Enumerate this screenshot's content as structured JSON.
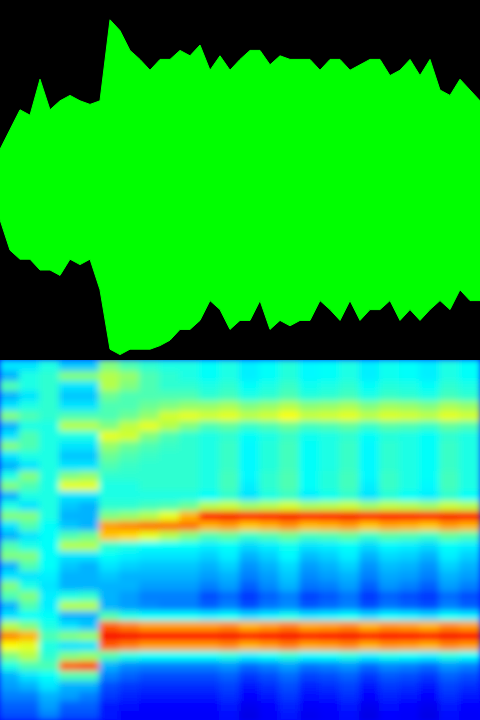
{
  "chart_data": [
    {
      "type": "area",
      "xlim": [
        0,
        480
      ],
      "ylim": [
        -1,
        1
      ],
      "tick_labels": false,
      "x": [
        0,
        10,
        20,
        30,
        40,
        50,
        60,
        70,
        80,
        90,
        100,
        110,
        120,
        130,
        140,
        150,
        160,
        170,
        180,
        190,
        200,
        210,
        220,
        230,
        240,
        250,
        260,
        270,
        280,
        290,
        300,
        310,
        320,
        330,
        340,
        350,
        360,
        370,
        380,
        390,
        400,
        410,
        420,
        430,
        440,
        450,
        460,
        470,
        480
      ],
      "series": [
        {
          "color": "#00ff00",
          "values": [
            0.17,
            0.28,
            0.39,
            0.36,
            0.56,
            0.39,
            0.44,
            0.47,
            0.44,
            0.42,
            0.44,
            0.89,
            0.83,
            0.72,
            0.67,
            0.61,
            0.67,
            0.67,
            0.72,
            0.69,
            0.75,
            0.61,
            0.69,
            0.61,
            0.67,
            0.72,
            0.72,
            0.64,
            0.69,
            0.67,
            0.67,
            0.67,
            0.61,
            0.67,
            0.67,
            0.61,
            0.64,
            0.67,
            0.67,
            0.58,
            0.61,
            0.67,
            0.58,
            0.67,
            0.5,
            0.47,
            0.56,
            0.5,
            0.44
          ]
        },
        {
          "color": "#00ff00",
          "values": [
            -0.22,
            -0.39,
            -0.44,
            -0.44,
            -0.5,
            -0.5,
            -0.53,
            -0.44,
            -0.47,
            -0.44,
            -0.61,
            -0.94,
            -0.97,
            -0.94,
            -0.94,
            -0.94,
            -0.92,
            -0.89,
            -0.83,
            -0.83,
            -0.78,
            -0.67,
            -0.72,
            -0.83,
            -0.78,
            -0.78,
            -0.67,
            -0.83,
            -0.78,
            -0.81,
            -0.78,
            -0.78,
            -0.67,
            -0.72,
            -0.78,
            -0.67,
            -0.78,
            -0.72,
            -0.72,
            -0.67,
            -0.78,
            -0.72,
            -0.78,
            -0.72,
            -0.67,
            -0.72,
            -0.61,
            -0.67,
            -0.67
          ]
        }
      ]
    },
    {
      "type": "heatmap",
      "xlim": [
        0,
        24
      ],
      "ylim": [
        0,
        36
      ],
      "zlim": [
        0,
        1
      ],
      "tick_labels": false,
      "cells": [
        [
          0.2,
          0.2,
          0.25,
          0.2,
          0.2,
          0.15,
          0.12,
          0.12,
          0.12,
          0.12,
          0.12,
          0.14,
          0.1,
          0.12,
          0.15,
          0.11,
          0.12,
          0.14,
          0.1,
          0.13,
          0.12,
          0.1,
          0.14,
          0.12
        ],
        [
          0.22,
          0.22,
          0.28,
          0.22,
          0.22,
          0.15,
          0.14,
          0.13,
          0.13,
          0.13,
          0.13,
          0.15,
          0.11,
          0.13,
          0.16,
          0.12,
          0.13,
          0.15,
          0.11,
          0.14,
          0.13,
          0.11,
          0.15,
          0.13
        ],
        [
          0.25,
          0.25,
          0.3,
          0.28,
          0.25,
          0.18,
          0.16,
          0.15,
          0.15,
          0.15,
          0.15,
          0.17,
          0.13,
          0.15,
          0.18,
          0.14,
          0.15,
          0.17,
          0.13,
          0.16,
          0.15,
          0.13,
          0.17,
          0.15
        ],
        [
          0.28,
          0.3,
          0.35,
          0.3,
          0.3,
          0.2,
          0.18,
          0.17,
          0.17,
          0.17,
          0.17,
          0.19,
          0.15,
          0.17,
          0.2,
          0.16,
          0.17,
          0.19,
          0.15,
          0.18,
          0.17,
          0.15,
          0.19,
          0.17
        ],
        [
          0.3,
          0.35,
          0.38,
          0.45,
          0.45,
          0.25,
          0.22,
          0.2,
          0.2,
          0.2,
          0.2,
          0.22,
          0.18,
          0.2,
          0.23,
          0.19,
          0.2,
          0.22,
          0.18,
          0.21,
          0.2,
          0.18,
          0.22,
          0.2
        ],
        [
          0.4,
          0.45,
          0.45,
          0.78,
          0.8,
          0.3,
          0.26,
          0.25,
          0.25,
          0.25,
          0.25,
          0.27,
          0.23,
          0.25,
          0.28,
          0.24,
          0.25,
          0.27,
          0.23,
          0.26,
          0.25,
          0.23,
          0.27,
          0.25
        ],
        [
          0.5,
          0.55,
          0.42,
          0.5,
          0.52,
          0.45,
          0.4,
          0.38,
          0.38,
          0.38,
          0.38,
          0.4,
          0.36,
          0.38,
          0.41,
          0.37,
          0.38,
          0.4,
          0.36,
          0.39,
          0.38,
          0.36,
          0.4,
          0.38
        ],
        [
          0.62,
          0.6,
          0.4,
          0.35,
          0.35,
          0.78,
          0.75,
          0.72,
          0.72,
          0.72,
          0.72,
          0.74,
          0.7,
          0.72,
          0.75,
          0.71,
          0.72,
          0.74,
          0.7,
          0.73,
          0.72,
          0.7,
          0.74,
          0.72
        ],
        [
          0.74,
          0.7,
          0.45,
          0.5,
          0.52,
          0.88,
          0.88,
          0.87,
          0.87,
          0.87,
          0.87,
          0.88,
          0.86,
          0.87,
          0.88,
          0.86,
          0.87,
          0.88,
          0.86,
          0.87,
          0.87,
          0.86,
          0.88,
          0.87
        ],
        [
          0.55,
          0.5,
          0.4,
          0.35,
          0.32,
          0.78,
          0.75,
          0.72,
          0.72,
          0.72,
          0.72,
          0.74,
          0.7,
          0.72,
          0.75,
          0.71,
          0.72,
          0.74,
          0.7,
          0.73,
          0.72,
          0.7,
          0.74,
          0.72
        ],
        [
          0.35,
          0.38,
          0.38,
          0.3,
          0.3,
          0.45,
          0.4,
          0.38,
          0.38,
          0.38,
          0.36,
          0.38,
          0.34,
          0.36,
          0.39,
          0.35,
          0.36,
          0.38,
          0.34,
          0.37,
          0.36,
          0.34,
          0.38,
          0.36
        ],
        [
          0.3,
          0.45,
          0.36,
          0.55,
          0.55,
          0.3,
          0.28,
          0.26,
          0.25,
          0.25,
          0.22,
          0.25,
          0.2,
          0.24,
          0.26,
          0.21,
          0.23,
          0.25,
          0.2,
          0.24,
          0.22,
          0.2,
          0.25,
          0.22
        ],
        [
          0.45,
          0.5,
          0.36,
          0.4,
          0.42,
          0.3,
          0.28,
          0.25,
          0.25,
          0.25,
          0.2,
          0.23,
          0.18,
          0.22,
          0.25,
          0.19,
          0.21,
          0.24,
          0.18,
          0.22,
          0.2,
          0.18,
          0.23,
          0.2
        ],
        [
          0.5,
          0.4,
          0.35,
          0.3,
          0.3,
          0.3,
          0.3,
          0.28,
          0.28,
          0.28,
          0.25,
          0.28,
          0.22,
          0.26,
          0.3,
          0.24,
          0.25,
          0.28,
          0.22,
          0.27,
          0.25,
          0.22,
          0.28,
          0.25
        ],
        [
          0.35,
          0.35,
          0.36,
          0.3,
          0.3,
          0.32,
          0.3,
          0.3,
          0.3,
          0.3,
          0.28,
          0.3,
          0.25,
          0.28,
          0.32,
          0.26,
          0.28,
          0.3,
          0.25,
          0.29,
          0.28,
          0.25,
          0.3,
          0.28
        ],
        [
          0.3,
          0.45,
          0.38,
          0.32,
          0.3,
          0.35,
          0.33,
          0.32,
          0.32,
          0.32,
          0.3,
          0.33,
          0.27,
          0.3,
          0.34,
          0.28,
          0.3,
          0.33,
          0.27,
          0.31,
          0.3,
          0.27,
          0.33,
          0.3
        ],
        [
          0.5,
          0.5,
          0.38,
          0.35,
          0.35,
          0.38,
          0.36,
          0.35,
          0.35,
          0.35,
          0.33,
          0.36,
          0.3,
          0.33,
          0.37,
          0.31,
          0.33,
          0.36,
          0.3,
          0.34,
          0.33,
          0.3,
          0.36,
          0.33
        ],
        [
          0.45,
          0.4,
          0.38,
          0.55,
          0.55,
          0.42,
          0.4,
          0.38,
          0.38,
          0.38,
          0.36,
          0.38,
          0.34,
          0.36,
          0.39,
          0.35,
          0.36,
          0.38,
          0.34,
          0.37,
          0.36,
          0.34,
          0.38,
          0.36
        ],
        [
          0.3,
          0.35,
          0.38,
          0.45,
          0.48,
          0.68,
          0.66,
          0.6,
          0.55,
          0.5,
          0.45,
          0.47,
          0.43,
          0.45,
          0.48,
          0.44,
          0.45,
          0.47,
          0.43,
          0.46,
          0.45,
          0.43,
          0.47,
          0.45
        ],
        [
          0.35,
          0.45,
          0.38,
          0.32,
          0.3,
          0.72,
          0.74,
          0.76,
          0.76,
          0.76,
          0.7,
          0.72,
          0.68,
          0.7,
          0.73,
          0.69,
          0.7,
          0.72,
          0.68,
          0.71,
          0.7,
          0.68,
          0.72,
          0.7
        ],
        [
          0.5,
          0.5,
          0.4,
          0.3,
          0.3,
          0.5,
          0.52,
          0.55,
          0.6,
          0.7,
          0.87,
          0.88,
          0.86,
          0.87,
          0.88,
          0.86,
          0.87,
          0.88,
          0.86,
          0.87,
          0.87,
          0.86,
          0.88,
          0.87
        ],
        [
          0.4,
          0.35,
          0.4,
          0.32,
          0.3,
          0.42,
          0.42,
          0.44,
          0.45,
          0.48,
          0.55,
          0.57,
          0.53,
          0.55,
          0.58,
          0.54,
          0.55,
          0.57,
          0.53,
          0.56,
          0.55,
          0.53,
          0.57,
          0.55
        ],
        [
          0.3,
          0.4,
          0.4,
          0.35,
          0.35,
          0.4,
          0.4,
          0.4,
          0.4,
          0.4,
          0.38,
          0.42,
          0.35,
          0.4,
          0.43,
          0.36,
          0.39,
          0.42,
          0.35,
          0.41,
          0.38,
          0.36,
          0.42,
          0.38
        ],
        [
          0.5,
          0.45,
          0.4,
          0.6,
          0.6,
          0.4,
          0.4,
          0.42,
          0.42,
          0.42,
          0.4,
          0.44,
          0.36,
          0.42,
          0.45,
          0.38,
          0.41,
          0.44,
          0.36,
          0.43,
          0.4,
          0.37,
          0.44,
          0.4
        ],
        [
          0.4,
          0.5,
          0.4,
          0.5,
          0.52,
          0.42,
          0.42,
          0.42,
          0.42,
          0.42,
          0.4,
          0.44,
          0.37,
          0.42,
          0.45,
          0.38,
          0.41,
          0.44,
          0.37,
          0.43,
          0.4,
          0.38,
          0.44,
          0.4
        ],
        [
          0.3,
          0.35,
          0.4,
          0.35,
          0.35,
          0.45,
          0.43,
          0.42,
          0.42,
          0.42,
          0.4,
          0.43,
          0.37,
          0.41,
          0.44,
          0.38,
          0.4,
          0.43,
          0.37,
          0.42,
          0.4,
          0.38,
          0.43,
          0.4
        ],
        [
          0.35,
          0.4,
          0.4,
          0.32,
          0.32,
          0.48,
          0.45,
          0.43,
          0.42,
          0.42,
          0.4,
          0.43,
          0.37,
          0.41,
          0.44,
          0.38,
          0.4,
          0.43,
          0.37,
          0.42,
          0.4,
          0.38,
          0.43,
          0.4
        ],
        [
          0.5,
          0.45,
          0.4,
          0.35,
          0.35,
          0.52,
          0.48,
          0.45,
          0.43,
          0.42,
          0.4,
          0.43,
          0.37,
          0.41,
          0.44,
          0.38,
          0.4,
          0.43,
          0.37,
          0.42,
          0.4,
          0.38,
          0.43,
          0.4
        ],
        [
          0.35,
          0.45,
          0.4,
          0.4,
          0.4,
          0.6,
          0.58,
          0.5,
          0.45,
          0.42,
          0.4,
          0.42,
          0.38,
          0.4,
          0.43,
          0.39,
          0.4,
          0.42,
          0.38,
          0.41,
          0.4,
          0.38,
          0.42,
          0.4
        ],
        [
          0.3,
          0.4,
          0.4,
          0.55,
          0.55,
          0.5,
          0.56,
          0.6,
          0.55,
          0.5,
          0.45,
          0.47,
          0.43,
          0.45,
          0.48,
          0.44,
          0.45,
          0.47,
          0.43,
          0.46,
          0.45,
          0.43,
          0.47,
          0.45
        ],
        [
          0.5,
          0.45,
          0.42,
          0.45,
          0.45,
          0.45,
          0.48,
          0.52,
          0.58,
          0.6,
          0.58,
          0.6,
          0.56,
          0.58,
          0.62,
          0.57,
          0.58,
          0.6,
          0.56,
          0.59,
          0.58,
          0.56,
          0.6,
          0.58
        ],
        [
          0.35,
          0.4,
          0.42,
          0.35,
          0.35,
          0.45,
          0.45,
          0.48,
          0.5,
          0.52,
          0.52,
          0.54,
          0.5,
          0.52,
          0.55,
          0.51,
          0.52,
          0.54,
          0.5,
          0.53,
          0.52,
          0.5,
          0.54,
          0.52
        ],
        [
          0.3,
          0.35,
          0.42,
          0.32,
          0.32,
          0.48,
          0.45,
          0.45,
          0.45,
          0.45,
          0.42,
          0.44,
          0.4,
          0.42,
          0.45,
          0.41,
          0.42,
          0.44,
          0.4,
          0.43,
          0.42,
          0.4,
          0.44,
          0.42
        ],
        [
          0.45,
          0.4,
          0.42,
          0.35,
          0.35,
          0.55,
          0.5,
          0.45,
          0.42,
          0.42,
          0.4,
          0.42,
          0.38,
          0.4,
          0.43,
          0.39,
          0.4,
          0.42,
          0.38,
          0.41,
          0.4,
          0.38,
          0.42,
          0.4
        ],
        [
          0.3,
          0.4,
          0.42,
          0.5,
          0.5,
          0.55,
          0.52,
          0.45,
          0.42,
          0.4,
          0.38,
          0.4,
          0.36,
          0.38,
          0.41,
          0.37,
          0.38,
          0.4,
          0.36,
          0.39,
          0.38,
          0.36,
          0.4,
          0.38
        ],
        [
          0.35,
          0.35,
          0.4,
          0.32,
          0.32,
          0.5,
          0.45,
          0.42,
          0.4,
          0.4,
          0.38,
          0.4,
          0.36,
          0.38,
          0.41,
          0.37,
          0.38,
          0.4,
          0.36,
          0.39,
          0.38,
          0.36,
          0.4,
          0.38
        ]
      ]
    }
  ]
}
